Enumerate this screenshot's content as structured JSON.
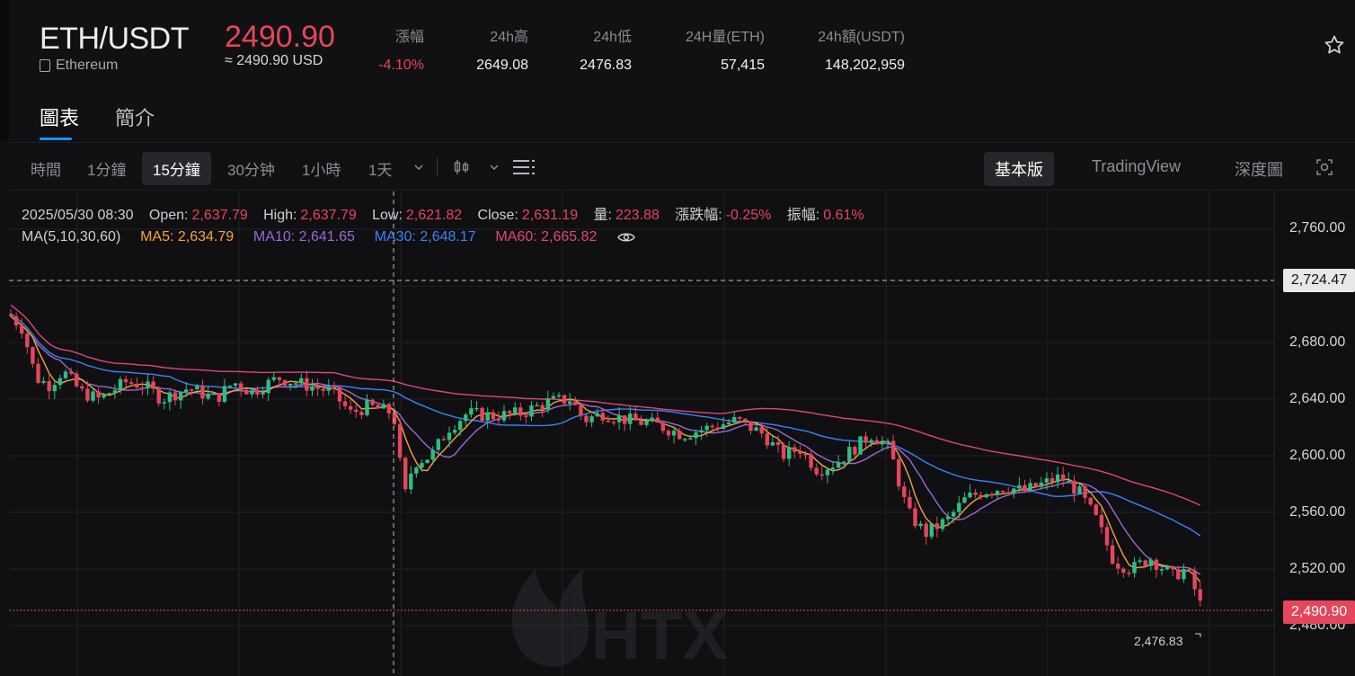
{
  "header": {
    "pair": "ETH/USDT",
    "coin_name": "Ethereum",
    "price": "2490.90",
    "usd_equiv": "≈ 2490.90 USD",
    "stats": [
      {
        "label": "漲幅",
        "value": "-4.10%",
        "down": true
      },
      {
        "label": "24h高",
        "value": "2649.08"
      },
      {
        "label": "24h低",
        "value": "2476.83"
      },
      {
        "label": "24H量(ETH)",
        "value": "57,415"
      },
      {
        "label": "24h額(USDT)",
        "value": "148,202,959"
      }
    ],
    "favorite_icon": "star-icon"
  },
  "tabs": [
    {
      "label": "圖表",
      "active": true
    },
    {
      "label": "簡介",
      "active": false
    }
  ],
  "toolbar": {
    "intervals": [
      "時間",
      "1分鐘",
      "15分鐘",
      "30分钟",
      "1小時",
      "1天"
    ],
    "active_interval": "15分鐘",
    "candle_type_icon": "candlestick-icon",
    "indicators_icon": "indicators-icon",
    "views": [
      "基本版",
      "TradingView",
      "深度圖"
    ],
    "active_view": "基本版",
    "screenshot_icon": "camera-icon"
  },
  "legend": {
    "datetime": "2025/05/30 08:30",
    "open_label": "Open:",
    "open": "2,637.79",
    "high_label": "High:",
    "high": "2,637.79",
    "low_label": "Low:",
    "low": "2,621.82",
    "close_label": "Close:",
    "close": "2,631.19",
    "vol_label": "量:",
    "vol": "223.88",
    "chg_label": "漲跌幅:",
    "chg": "-0.25%",
    "amp_label": "振幅:",
    "amp": "0.61%",
    "ma_group": "MA(5,10,30,60)",
    "ma5": "MA5: 2,634.79",
    "ma10": "MA10: 2,641.65",
    "ma30": "MA30: 2,648.17",
    "ma60": "MA60: 2,665.82"
  },
  "axis": {
    "ticks": [
      "2,760.00",
      "2,680.00",
      "2,640.00",
      "2,600.00",
      "2,560.00",
      "2,520.00",
      "2,480.00"
    ],
    "crosshair_price": "2,724.47",
    "last_price": "2,490.90",
    "low_marker": "2,476.83"
  },
  "colors": {
    "up": "#2ebd85",
    "down": "#e5465b",
    "ma5": "#f3a43b",
    "ma10": "#9b6ad2",
    "ma30": "#3b82f6",
    "ma60": "#e0457b"
  },
  "watermark": "HTX"
}
